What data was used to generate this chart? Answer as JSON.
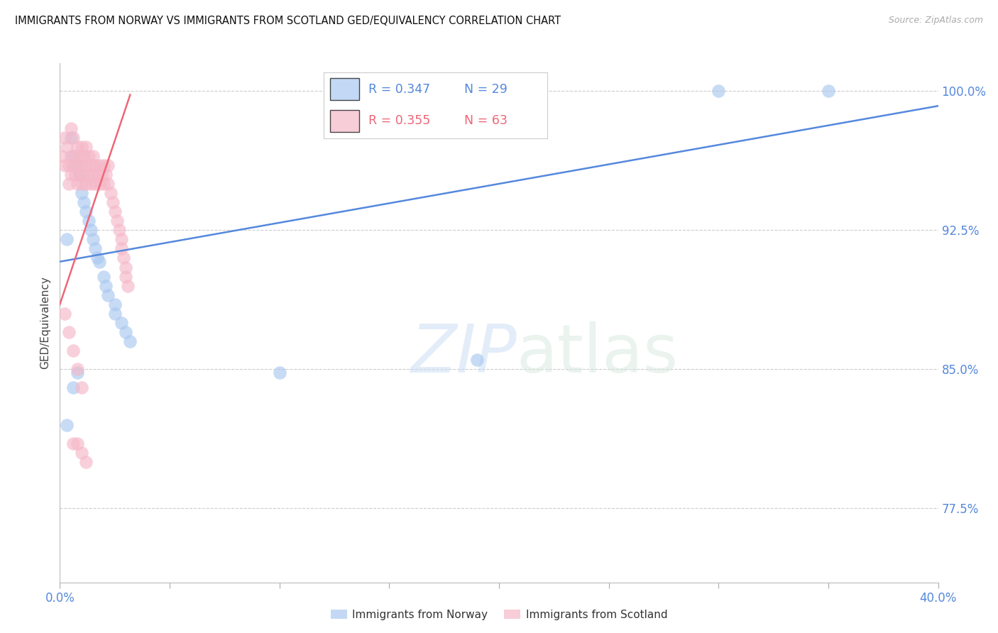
{
  "title": "IMMIGRANTS FROM NORWAY VS IMMIGRANTS FROM SCOTLAND GED/EQUIVALENCY CORRELATION CHART",
  "source": "Source: ZipAtlas.com",
  "ylabel": "GED/Equivalency",
  "ytick_vals": [
    0.775,
    0.85,
    0.925,
    1.0
  ],
  "ytick_labels": [
    "77.5%",
    "85.0%",
    "92.5%",
    "100.0%"
  ],
  "xlim": [
    0.0,
    0.4
  ],
  "ylim": [
    0.735,
    1.015
  ],
  "norway_R": "0.347",
  "norway_N": "29",
  "scotland_R": "0.355",
  "scotland_N": "63",
  "norway_color": "#aac8f0",
  "scotland_color": "#f5b8c8",
  "norway_line_color": "#5588dd",
  "scotland_line_color": "#ee6677",
  "norway_scatter_x": [
    0.003,
    0.005,
    0.006,
    0.008,
    0.009,
    0.01,
    0.011,
    0.012,
    0.013,
    0.014,
    0.015,
    0.016,
    0.017,
    0.018,
    0.02,
    0.021,
    0.022,
    0.025,
    0.025,
    0.028,
    0.03,
    0.032,
    0.003,
    0.006,
    0.008,
    0.1,
    0.19,
    0.3,
    0.35
  ],
  "norway_scatter_y": [
    0.92,
    0.975,
    0.965,
    0.96,
    0.955,
    0.945,
    0.94,
    0.935,
    0.93,
    0.925,
    0.92,
    0.915,
    0.91,
    0.908,
    0.9,
    0.895,
    0.89,
    0.885,
    0.88,
    0.875,
    0.87,
    0.865,
    0.82,
    0.84,
    0.848,
    0.848,
    0.855,
    1.0,
    1.0
  ],
  "scotland_scatter_x": [
    0.001,
    0.002,
    0.002,
    0.003,
    0.004,
    0.004,
    0.005,
    0.005,
    0.005,
    0.006,
    0.006,
    0.007,
    0.007,
    0.008,
    0.008,
    0.008,
    0.009,
    0.009,
    0.01,
    0.01,
    0.01,
    0.011,
    0.011,
    0.012,
    0.012,
    0.012,
    0.013,
    0.013,
    0.014,
    0.014,
    0.015,
    0.015,
    0.016,
    0.016,
    0.017,
    0.018,
    0.018,
    0.019,
    0.02,
    0.02,
    0.021,
    0.022,
    0.022,
    0.023,
    0.024,
    0.025,
    0.026,
    0.027,
    0.028,
    0.028,
    0.029,
    0.03,
    0.03,
    0.031,
    0.002,
    0.004,
    0.006,
    0.008,
    0.01,
    0.006,
    0.008,
    0.01,
    0.012
  ],
  "scotland_scatter_y": [
    0.965,
    0.975,
    0.96,
    0.97,
    0.96,
    0.95,
    0.98,
    0.965,
    0.955,
    0.975,
    0.96,
    0.965,
    0.955,
    0.97,
    0.96,
    0.95,
    0.965,
    0.955,
    0.97,
    0.96,
    0.95,
    0.965,
    0.955,
    0.97,
    0.96,
    0.95,
    0.965,
    0.955,
    0.96,
    0.95,
    0.965,
    0.955,
    0.96,
    0.95,
    0.955,
    0.96,
    0.95,
    0.955,
    0.96,
    0.95,
    0.955,
    0.96,
    0.95,
    0.945,
    0.94,
    0.935,
    0.93,
    0.925,
    0.92,
    0.915,
    0.91,
    0.905,
    0.9,
    0.895,
    0.88,
    0.87,
    0.86,
    0.85,
    0.84,
    0.81,
    0.81,
    0.805,
    0.8
  ],
  "norway_line_x": [
    0.0,
    0.4
  ],
  "norway_line_y": [
    0.908,
    0.992
  ],
  "scotland_line_x": [
    0.0,
    0.032
  ],
  "scotland_line_y": [
    0.885,
    0.998
  ],
  "watermark_zip": "ZIP",
  "watermark_atlas": "atlas",
  "background_color": "#ffffff"
}
